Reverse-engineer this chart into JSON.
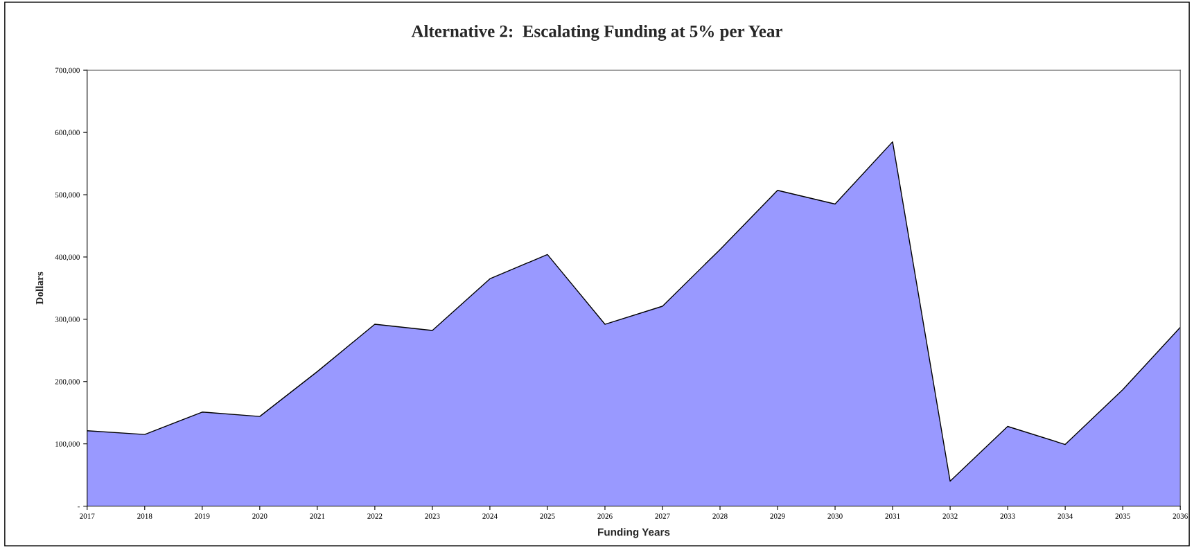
{
  "chart_data": {
    "type": "area",
    "title": "Alternative 2:  Escalating Funding at 5% per Year",
    "xlabel": "Funding Years",
    "ylabel": "Dollars",
    "categories": [
      "2017",
      "2018",
      "2019",
      "2020",
      "2021",
      "2022",
      "2023",
      "2024",
      "2025",
      "2026",
      "2027",
      "2028",
      "2029",
      "2030",
      "2031",
      "2032",
      "2033",
      "2034",
      "2035",
      "2036"
    ],
    "series": [
      {
        "color": "#9999ff",
        "values": [
          121000,
          115000,
          151000,
          144000,
          216000,
          292000,
          282000,
          365000,
          404000,
          292000,
          321000,
          412000,
          507000,
          485000,
          585000,
          40000,
          128000,
          99000,
          187000,
          287000
        ]
      }
    ],
    "ylim": [
      0,
      700000
    ],
    "yticks": [
      {
        "value": 0,
        "label": "-"
      },
      {
        "value": 100000,
        "label": "100,000"
      },
      {
        "value": 200000,
        "label": "200,000"
      },
      {
        "value": 300000,
        "label": "300,000"
      },
      {
        "value": 400000,
        "label": "400,000"
      },
      {
        "value": 500000,
        "label": "500,000"
      },
      {
        "value": 600000,
        "label": "600,000"
      },
      {
        "value": 700000,
        "label": "700,000"
      }
    ],
    "grid": false,
    "legend": false
  }
}
